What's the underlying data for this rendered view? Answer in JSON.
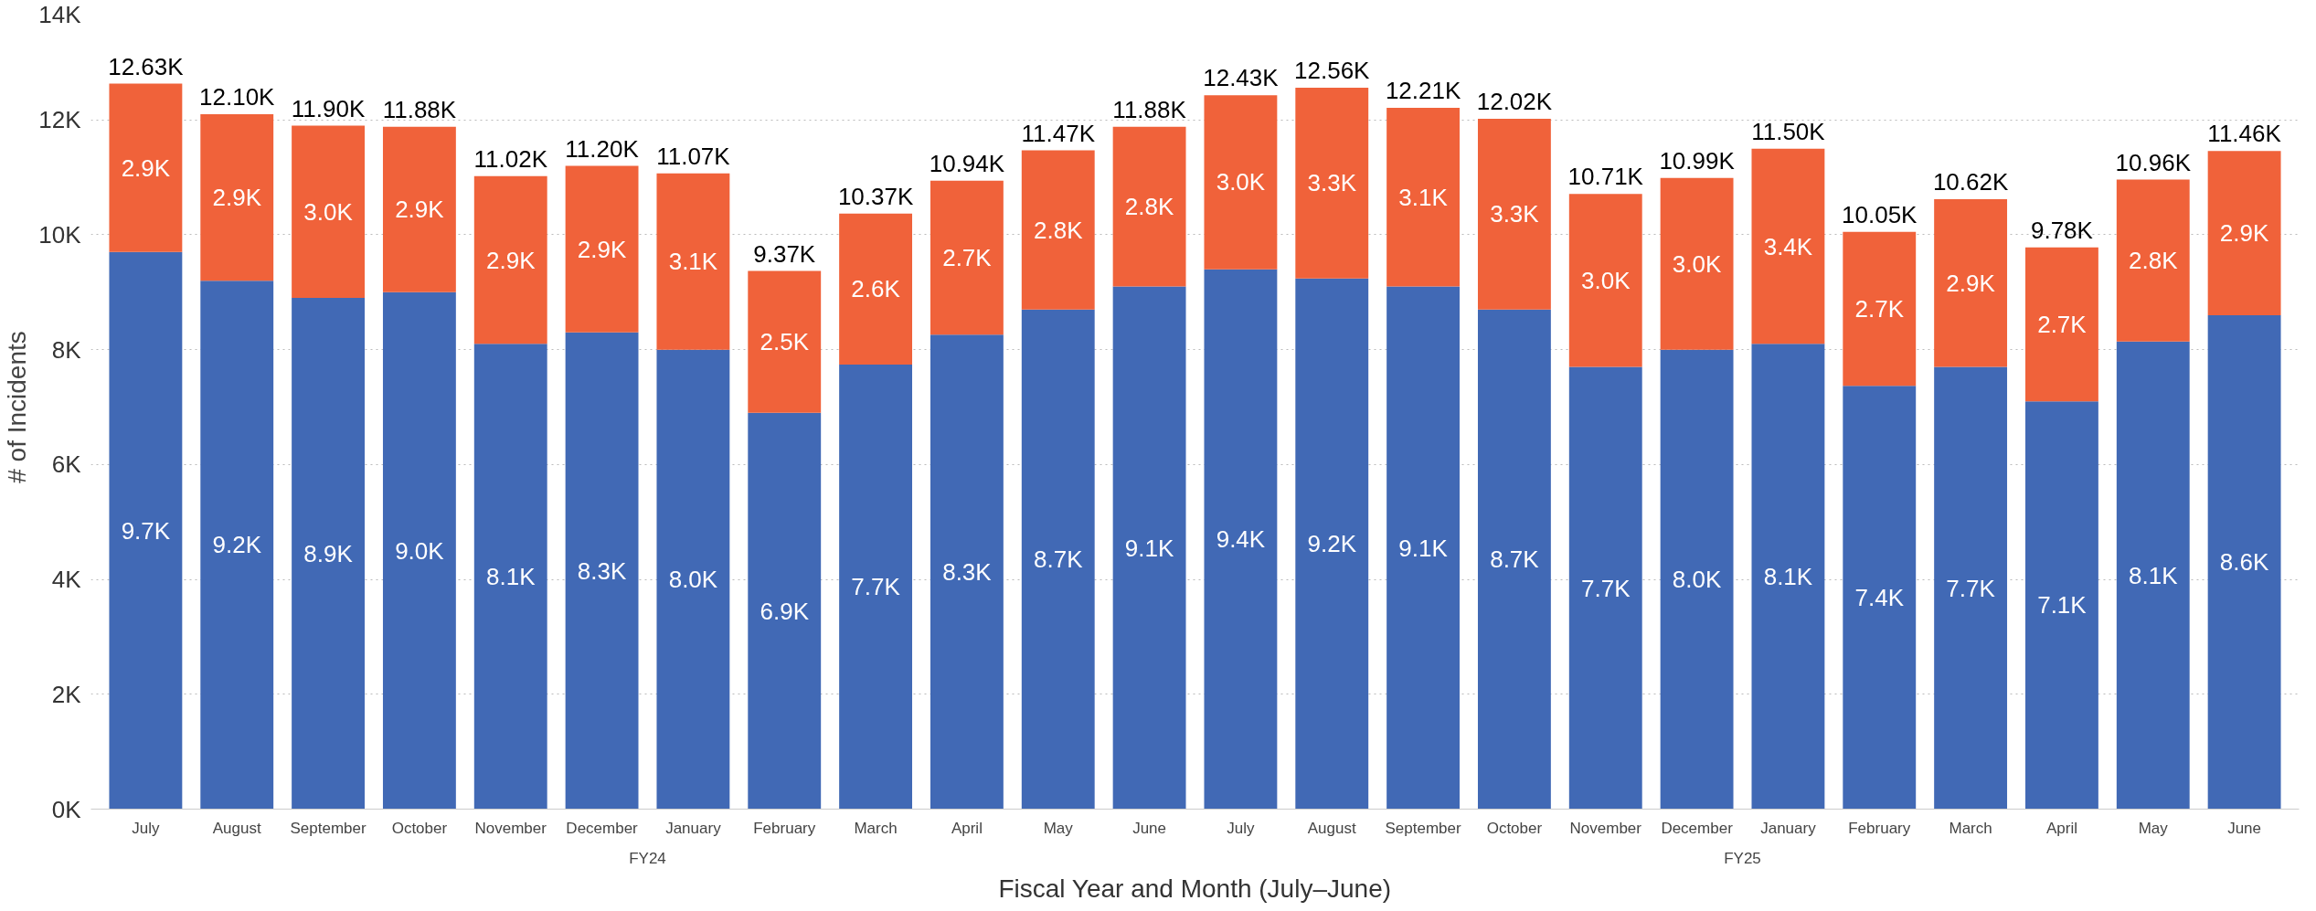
{
  "chart_data": {
    "type": "bar",
    "stacked": true,
    "xlabel": "Fiscal Year and Month (July–June)",
    "ylabel": "# of Incidents",
    "categories": [
      "July",
      "August",
      "September",
      "October",
      "November",
      "December",
      "January",
      "February",
      "March",
      "April",
      "May",
      "June",
      "July",
      "August",
      "September",
      "October",
      "November",
      "December",
      "January",
      "February",
      "March",
      "April",
      "May",
      "June"
    ],
    "annotations": [
      "FY24",
      "FY25"
    ],
    "ylim": [
      0,
      14000
    ],
    "yticks": [
      {
        "value": 0,
        "label": "0K"
      },
      {
        "value": 2000,
        "label": "2K"
      },
      {
        "value": 4000,
        "label": "4K"
      },
      {
        "value": 6000,
        "label": "6K"
      },
      {
        "value": 8000,
        "label": "8K"
      },
      {
        "value": 10000,
        "label": "10K"
      },
      {
        "value": 12000,
        "label": "12K"
      },
      {
        "value": 14000,
        "label": "14K"
      }
    ],
    "grid": "y",
    "series": [
      {
        "color": "#4169b5",
        "values": [
          9700,
          9200,
          8900,
          9000,
          8100,
          8300,
          8000,
          6900,
          7740,
          8260,
          8700,
          9100,
          9400,
          9240,
          9100,
          8700,
          7700,
          8000,
          8100,
          7370,
          7700,
          7100,
          8140,
          8600
        ],
        "value_labels": [
          "9.7K",
          "9.2K",
          "8.9K",
          "9.0K",
          "8.1K",
          "8.3K",
          "8.0K",
          "6.9K",
          "7.7K",
          "8.3K",
          "8.7K",
          "9.1K",
          "9.4K",
          "9.2K",
          "9.1K",
          "8.7K",
          "7.7K",
          "8.0K",
          "8.1K",
          "7.4K",
          "7.7K",
          "7.1K",
          "8.1K",
          "8.6K"
        ]
      },
      {
        "color": "#f0623a",
        "values": [
          2930,
          2900,
          3000,
          2880,
          2920,
          2900,
          3070,
          2470,
          2630,
          2680,
          2770,
          2780,
          3030,
          3320,
          3110,
          3320,
          3010,
          2990,
          3400,
          2680,
          2920,
          2680,
          2820,
          2860
        ],
        "value_labels": [
          "2.9K",
          "2.9K",
          "3.0K",
          "2.9K",
          "2.9K",
          "2.9K",
          "3.1K",
          "2.5K",
          "2.6K",
          "2.7K",
          "2.8K",
          "2.8K",
          "3.0K",
          "3.3K",
          "3.1K",
          "3.3K",
          "3.0K",
          "3.0K",
          "3.4K",
          "2.7K",
          "2.9K",
          "2.7K",
          "2.8K",
          "2.9K"
        ]
      }
    ],
    "totals": [
      "12.63K",
      "12.10K",
      "11.90K",
      "11.88K",
      "11.02K",
      "11.20K",
      "11.07K",
      "9.37K",
      "10.37K",
      "10.94K",
      "11.47K",
      "11.88K",
      "12.43K",
      "12.56K",
      "12.21K",
      "12.02K",
      "10.71K",
      "10.99K",
      "11.50K",
      "10.05K",
      "10.62K",
      "9.78K",
      "10.96K",
      "11.46K"
    ]
  }
}
